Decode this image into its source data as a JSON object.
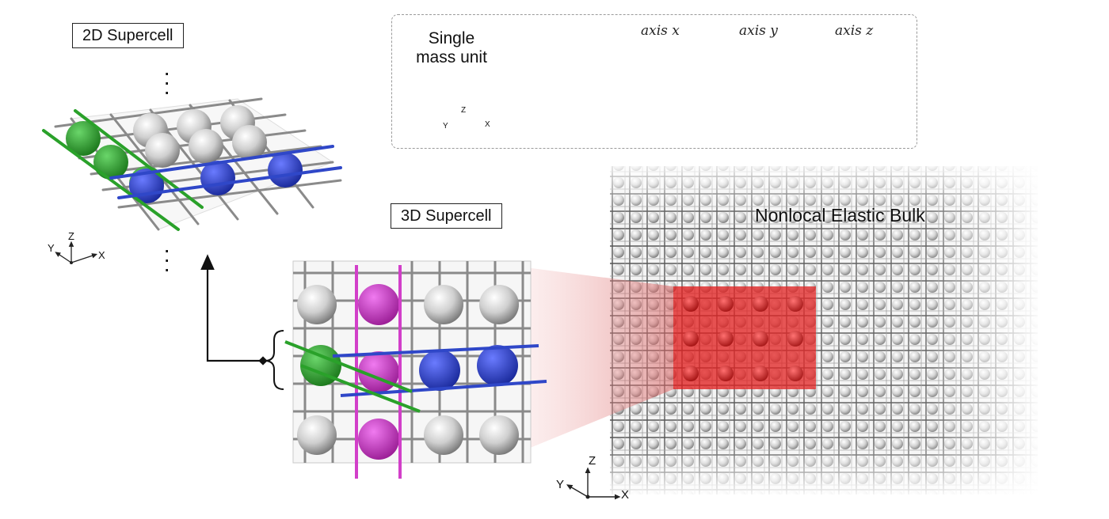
{
  "labels": {
    "supercell_2d": "2D Supercell",
    "supercell_3d": "3D Supercell",
    "bulk": "Nonlocal Elastic Bulk"
  },
  "legend": {
    "title_line1": "Single",
    "title_line2": "mass unit",
    "axis_x": "axis x",
    "axis_y": "axis y",
    "axis_z": "axis z"
  },
  "coords": {
    "x": "X",
    "y": "Y",
    "z": "Z"
  },
  "colors": {
    "x_axis": "#2f47c8",
    "y_axis": "#2aa12a",
    "z_axis": "#d23fc9",
    "highlight": "#e01b1b",
    "frame": "#9a9a9a"
  }
}
